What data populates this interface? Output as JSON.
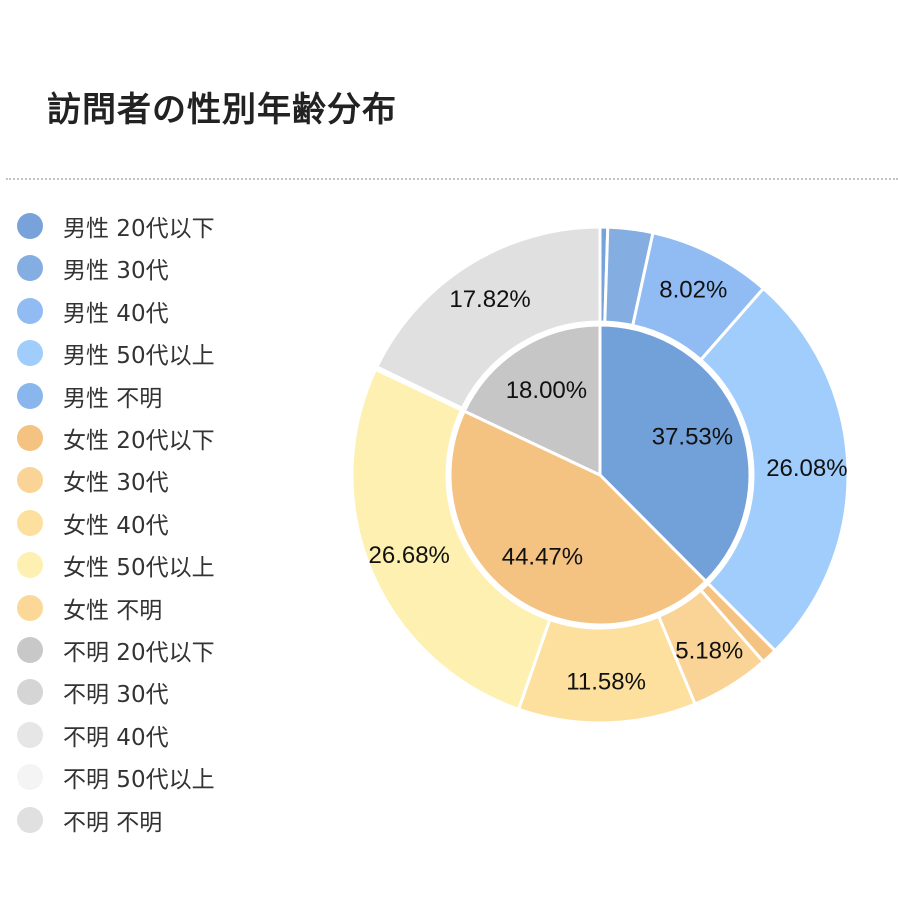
{
  "title": "訪問者の性別年齢分布",
  "chart_data": {
    "type": "pie",
    "title": "訪問者の性別年齢分布",
    "legend_position": "left",
    "inner": {
      "slices": [
        {
          "name": "男性",
          "value": 37.53,
          "color": "#72a0d8",
          "label": "37.53%"
        },
        {
          "name": "女性",
          "value": 44.47,
          "color": "#f4c281",
          "label": "44.47%"
        },
        {
          "name": "不明",
          "value": 18.0,
          "color": "#c6c6c6",
          "label": "18.00%"
        }
      ]
    },
    "outer": {
      "slices": [
        {
          "name": "男性 20代以下",
          "value": 0.5,
          "color": "#78a3da",
          "label": ""
        },
        {
          "name": "男性 30代",
          "value": 2.93,
          "color": "#84ade2",
          "label": ""
        },
        {
          "name": "男性 40代",
          "value": 8.02,
          "color": "#90bcf3",
          "label": "8.02%"
        },
        {
          "name": "男性 50代以上",
          "value": 26.08,
          "color": "#a0cdfb",
          "label": "26.08%"
        },
        {
          "name": "男性 不明",
          "value": 0.0,
          "color": "#8ab6ee",
          "label": ""
        },
        {
          "name": "女性 20代以下",
          "value": 1.03,
          "color": "#f4c281",
          "label": ""
        },
        {
          "name": "女性 30代",
          "value": 5.18,
          "color": "#fad396",
          "label": "5.18%"
        },
        {
          "name": "女性 40代",
          "value": 11.58,
          "color": "#fde09d",
          "label": "11.58%"
        },
        {
          "name": "女性 50代以上",
          "value": 26.68,
          "color": "#fef0b0",
          "label": "26.68%"
        },
        {
          "name": "女性 不明",
          "value": 0.0,
          "color": "#fbd898",
          "label": ""
        },
        {
          "name": "不明 20代以下",
          "value": 0.18,
          "color": "#c8c8c8",
          "label": ""
        },
        {
          "name": "不明 30代",
          "value": 0.0,
          "color": "#d5d5d5",
          "label": ""
        },
        {
          "name": "不明 40代",
          "value": 0.0,
          "color": "#e6e6e6",
          "label": ""
        },
        {
          "name": "不明 50代以上",
          "value": 0.0,
          "color": "#f4f4f4",
          "label": ""
        },
        {
          "name": "不明 不明",
          "value": 17.82,
          "color": "#e0e0e0",
          "label": "17.82%"
        }
      ]
    }
  },
  "legend": [
    {
      "label": "男性 20代以下",
      "color": "#78a3da"
    },
    {
      "label": "男性 30代",
      "color": "#84ade2"
    },
    {
      "label": "男性 40代",
      "color": "#90bcf3"
    },
    {
      "label": "男性 50代以上",
      "color": "#a0cdfb"
    },
    {
      "label": "男性 不明",
      "color": "#8ab6ee"
    },
    {
      "label": "女性 20代以下",
      "color": "#f4c281"
    },
    {
      "label": "女性 30代",
      "color": "#fad396"
    },
    {
      "label": "女性 40代",
      "color": "#fde09d"
    },
    {
      "label": "女性 50代以上",
      "color": "#fef0b0"
    },
    {
      "label": "女性 不明",
      "color": "#fbd898"
    },
    {
      "label": "不明 20代以下",
      "color": "#c8c8c8"
    },
    {
      "label": "不明 30代",
      "color": "#d5d5d5"
    },
    {
      "label": "不明 40代",
      "color": "#e6e6e6"
    },
    {
      "label": "不明 50代以上",
      "color": "#f4f4f4"
    },
    {
      "label": "不明 不明",
      "color": "#e0e0e0"
    }
  ]
}
